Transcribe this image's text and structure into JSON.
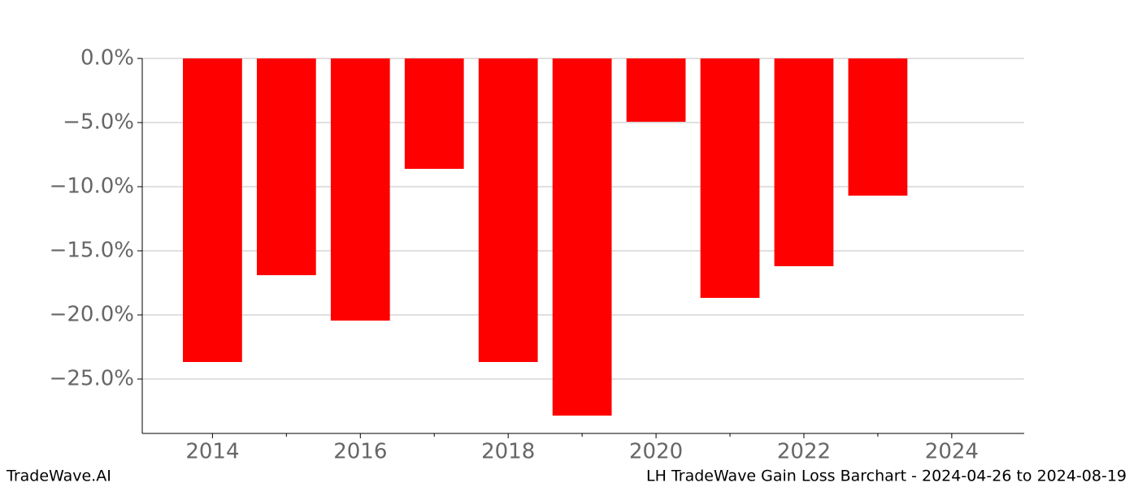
{
  "chart_data": {
    "type": "bar",
    "title": "LH TradeWave Gain Loss Barchart - 2024-04-26 to 2024-08-19",
    "source": "TradeWave.AI",
    "x": [
      2014,
      2015,
      2016,
      2017,
      2018,
      2019,
      2020,
      2021,
      2022,
      2023
    ],
    "values": [
      -23.67,
      -16.9,
      -20.44,
      -8.61,
      -23.67,
      -27.85,
      -4.94,
      -18.67,
      -16.2,
      -10.7
    ],
    "color": "#ff0000",
    "xlim": [
      2013.05,
      2024.98
    ],
    "xticks": [
      2014,
      2016,
      2018,
      2020,
      2022,
      2024
    ],
    "xminorticks": [
      2015,
      2017,
      2019,
      2021,
      2023
    ],
    "ylim": [
      -29.24,
      0
    ],
    "yticks": [
      {
        "value": 0,
        "label": "0.0%"
      },
      {
        "value": -5,
        "label": "−5.0%"
      },
      {
        "value": -10,
        "label": "−10.0%"
      },
      {
        "value": -15,
        "label": "−15.0%"
      },
      {
        "value": -20,
        "label": "−20.0%"
      },
      {
        "value": -25,
        "label": "−25.0%"
      }
    ],
    "grid": true
  }
}
